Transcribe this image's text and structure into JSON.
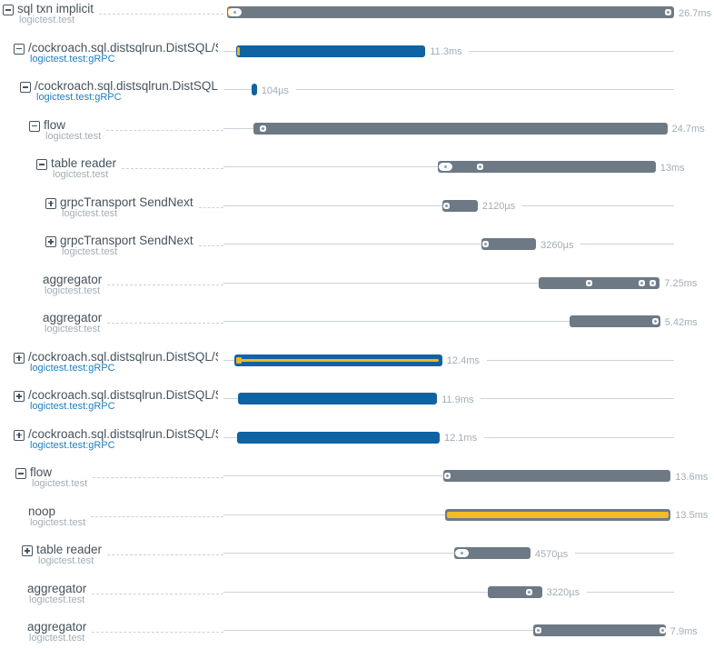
{
  "colors": {
    "bar_gray": "#6d7a85",
    "bar_blue": "#0f63a2",
    "accent_yellow": "#e9b724",
    "title_text": "#45525c",
    "muted_text": "#a3adb5",
    "link_blue": "#1e7ec2",
    "guide_line": "#ccd3d9"
  },
  "icons": {
    "collapse": "minus-box-icon",
    "expand": "plus-box-icon"
  },
  "chart_data": {
    "type": "gantt",
    "unit": "ms",
    "total_ms": 26.7,
    "grid": "off",
    "rows": [
      {
        "icon": "collapse",
        "indent": 3,
        "title": "sql txn implicit",
        "subtitle": "logictest.test",
        "subtitle_style": "gray",
        "start_ms": 0,
        "duration_ms": 26.7,
        "duration_label": "26.7ms",
        "bar_style": "gray",
        "stripe": null,
        "markers": [
          {
            "type": "tick",
            "at_ms": 0.1
          },
          {
            "type": "pill",
            "at_ms": 0.32
          },
          {
            "type": "dot",
            "at_ms": 26.35
          }
        ]
      },
      {
        "icon": "collapse",
        "indent": 15,
        "title": "/cockroach.sql.distsqlrun.DistSQL/Set",
        "subtitle": "logictest.test:gRPC",
        "subtitle_style": "blue",
        "start_ms": 0.55,
        "duration_ms": 11.3,
        "duration_label": "11.3ms",
        "bar_style": "blue",
        "stripe": null,
        "markers": [
          {
            "type": "tick",
            "at_ms": 0.62
          }
        ]
      },
      {
        "icon": "collapse",
        "indent": 22,
        "title": "/cockroach.sql.distsqlrun.DistSQL/S",
        "subtitle": "logictest.test:gRPC",
        "subtitle_style": "blue",
        "start_ms": 1.45,
        "duration_ms": 0.104,
        "duration_label": "104µs",
        "bar_style": "blue",
        "stripe": null,
        "markers": []
      },
      {
        "icon": "collapse",
        "indent": 32,
        "title": "flow",
        "subtitle": "logictest.test",
        "subtitle_style": "gray",
        "start_ms": 1.6,
        "duration_ms": 24.7,
        "duration_label": "24.7ms",
        "bar_style": "gray",
        "stripe": null,
        "markers": [
          {
            "type": "dot",
            "at_ms": 2.15
          }
        ]
      },
      {
        "icon": "collapse",
        "indent": 40,
        "title": "table reader",
        "subtitle": "logictest.test",
        "subtitle_style": "gray",
        "start_ms": 12.6,
        "duration_ms": 13,
        "duration_label": "13ms",
        "bar_style": "gray",
        "stripe": null,
        "markers": [
          {
            "type": "pill",
            "at_ms": 12.85
          },
          {
            "type": "dot",
            "at_ms": 15.1
          }
        ]
      },
      {
        "icon": "expand",
        "indent": 50,
        "title": "grpcTransport SendNext",
        "subtitle": "logictest.test",
        "subtitle_style": "gray",
        "start_ms": 12.85,
        "duration_ms": 2.12,
        "duration_label": "2120µs",
        "bar_style": "gray",
        "stripe": null,
        "markers": [
          {
            "type": "dot",
            "at_ms": 13.05
          }
        ]
      },
      {
        "icon": "expand",
        "indent": 50,
        "title": "grpcTransport SendNext",
        "subtitle": "logictest.test",
        "subtitle_style": "gray",
        "start_ms": 15.2,
        "duration_ms": 3.26,
        "duration_label": "3260µs",
        "bar_style": "gray",
        "stripe": null,
        "markers": [
          {
            "type": "dot",
            "at_ms": 15.4
          }
        ]
      },
      {
        "icon": null,
        "indent": 47,
        "title": "aggregator",
        "subtitle": "logictest.test",
        "subtitle_style": "gray",
        "start_ms": 18.6,
        "duration_ms": 7.25,
        "duration_label": "7.25ms",
        "bar_style": "gray",
        "stripe": null,
        "markers": [
          {
            "type": "dot",
            "at_ms": 21.6
          },
          {
            "type": "dot",
            "at_ms": 24.75
          },
          {
            "type": "dot",
            "at_ms": 25.4
          }
        ]
      },
      {
        "icon": null,
        "indent": 47,
        "title": "aggregator",
        "subtitle": "logictest.test",
        "subtitle_style": "gray",
        "start_ms": 20.45,
        "duration_ms": 5.42,
        "duration_label": "5.42ms",
        "bar_style": "gray",
        "stripe": null,
        "markers": [
          {
            "type": "dot",
            "at_ms": 25.6
          }
        ]
      },
      {
        "icon": "expand",
        "indent": 15,
        "title": "/cockroach.sql.distsqlrun.DistSQL/Set",
        "subtitle": "logictest.test:gRPC",
        "subtitle_style": "blue",
        "start_ms": 0.45,
        "duration_ms": 12.4,
        "duration_label": "12.4ms",
        "bar_style": "blue",
        "stripe": "thin",
        "markers": [
          {
            "type": "ysquare",
            "at_ms": 0.68
          }
        ]
      },
      {
        "icon": "expand",
        "indent": 15,
        "title": "/cockroach.sql.distsqlrun.DistSQL/Set",
        "subtitle": "logictest.test:gRPC",
        "subtitle_style": "blue",
        "start_ms": 0.65,
        "duration_ms": 11.9,
        "duration_label": "11.9ms",
        "bar_style": "blue",
        "stripe": null,
        "markers": []
      },
      {
        "icon": "expand",
        "indent": 15,
        "title": "/cockroach.sql.distsqlrun.DistSQL/Set",
        "subtitle": "logictest.test:gRPC",
        "subtitle_style": "blue",
        "start_ms": 0.6,
        "duration_ms": 12.1,
        "duration_label": "12.1ms",
        "bar_style": "blue",
        "stripe": null,
        "markers": []
      },
      {
        "icon": "collapse",
        "indent": 17,
        "title": "flow",
        "subtitle": "logictest.test",
        "subtitle_style": "gray",
        "start_ms": 12.9,
        "duration_ms": 13.6,
        "duration_label": "13.6ms",
        "bar_style": "gray",
        "stripe": null,
        "markers": [
          {
            "type": "dot",
            "at_ms": 13.15
          }
        ]
      },
      {
        "icon": null,
        "indent": 31,
        "title": "noop",
        "subtitle": "logictest.test",
        "subtitle_style": "gray",
        "start_ms": 13.0,
        "duration_ms": 13.5,
        "duration_label": "13.5ms",
        "bar_style": "gray",
        "stripe": "thick",
        "markers": []
      },
      {
        "icon": "expand",
        "indent": 24,
        "title": "table reader",
        "subtitle": "logictest.test",
        "subtitle_style": "gray",
        "start_ms": 13.55,
        "duration_ms": 4.57,
        "duration_label": "4570µs",
        "bar_style": "gray",
        "stripe": null,
        "markers": [
          {
            "type": "pill",
            "at_ms": 13.75
          }
        ]
      },
      {
        "icon": null,
        "indent": 30,
        "title": "aggregator",
        "subtitle": "logictest.test",
        "subtitle_style": "gray",
        "start_ms": 15.6,
        "duration_ms": 3.22,
        "duration_label": "3220µs",
        "bar_style": "gray",
        "stripe": null,
        "markers": [
          {
            "type": "dot",
            "at_ms": 18.05
          }
        ]
      },
      {
        "icon": null,
        "indent": 30,
        "title": "aggregator",
        "subtitle": "logictest.test",
        "subtitle_style": "gray",
        "start_ms": 18.3,
        "duration_ms": 7.9,
        "duration_label": "7.9ms",
        "bar_style": "gray",
        "stripe": null,
        "markers": [
          {
            "type": "dot",
            "at_ms": 18.6
          },
          {
            "type": "dot",
            "at_ms": 26.0
          }
        ]
      }
    ]
  }
}
